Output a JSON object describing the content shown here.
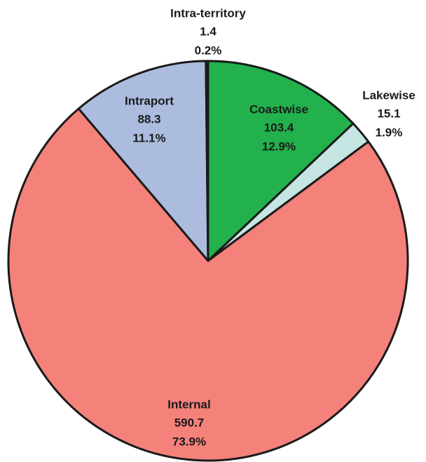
{
  "chart_data": {
    "type": "pie",
    "categories": [
      "Coastwise",
      "Lakewise",
      "Internal",
      "Intraport",
      "Intra-territory"
    ],
    "values": [
      103.4,
      15.1,
      590.7,
      88.3,
      1.4
    ],
    "percent_labels": [
      "12.9%",
      "1.9%",
      "73.9%",
      "11.1%",
      "0.2%"
    ],
    "colors": [
      "#22b14c",
      "#c4e5e1",
      "#f4817a",
      "#abbcde",
      "#222222"
    ]
  }
}
